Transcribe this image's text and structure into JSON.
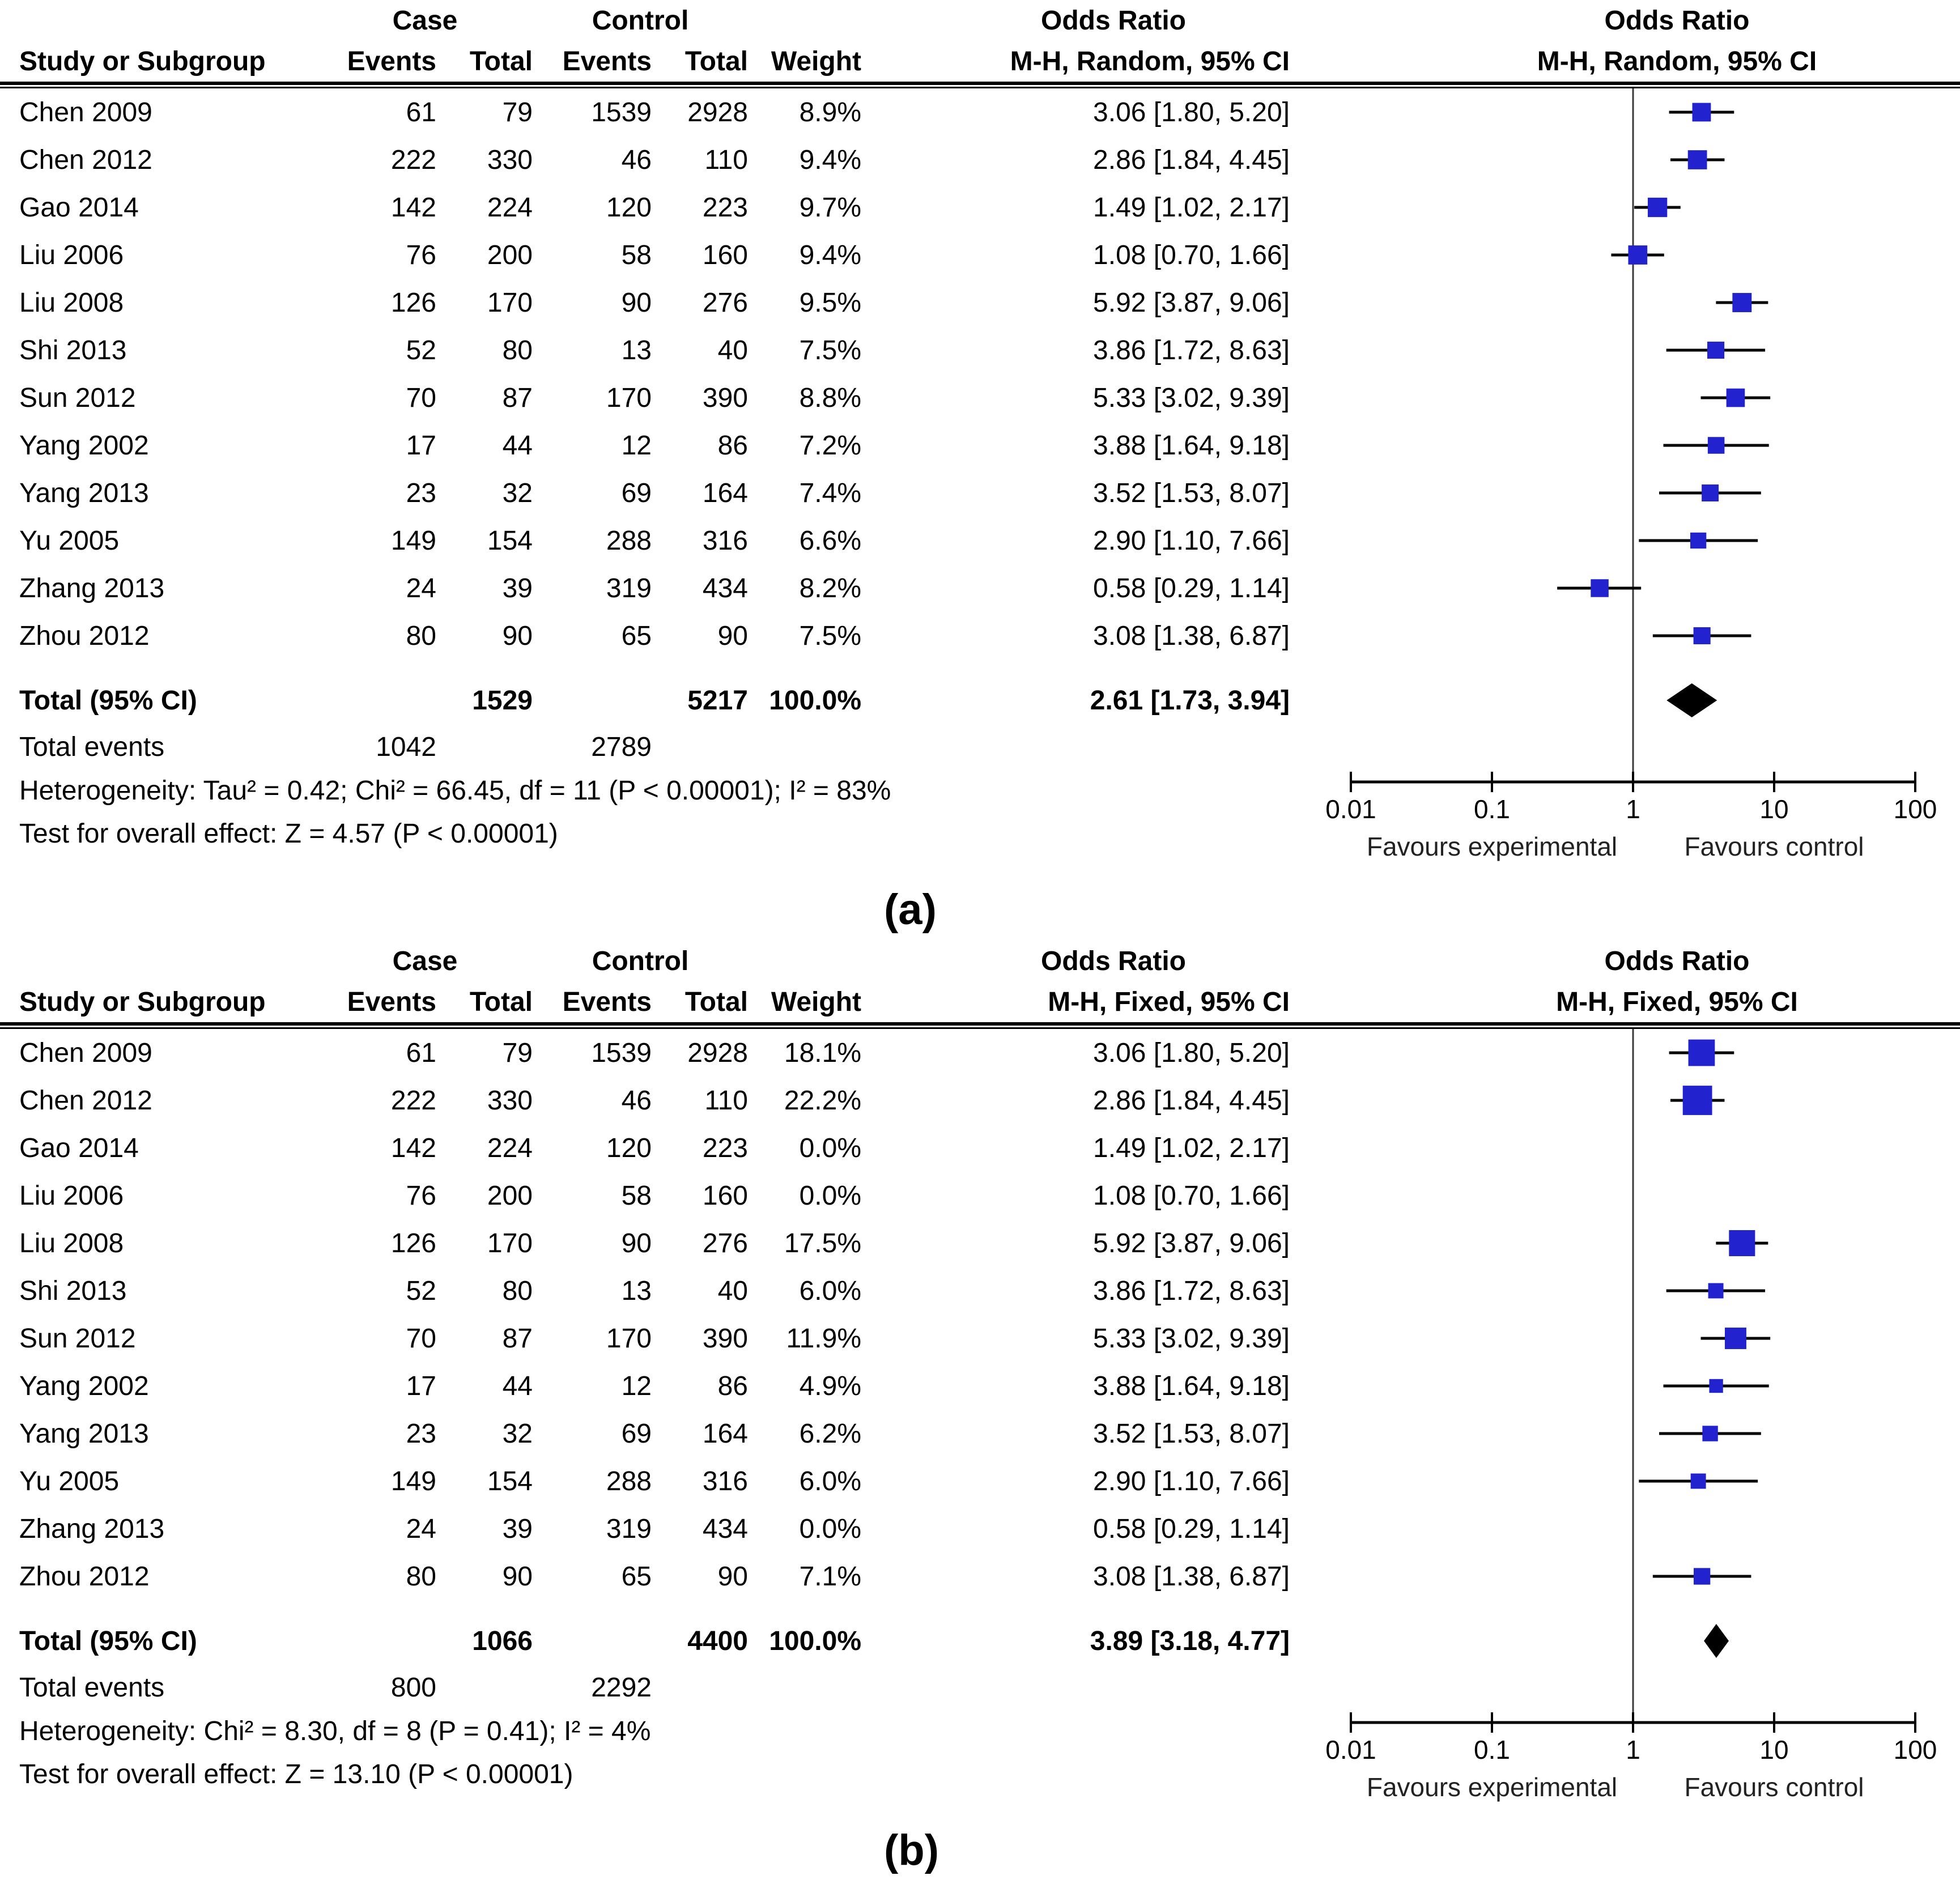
{
  "style": {
    "background": "#ffffff",
    "marker_color": "#2222cf",
    "ci_color": "#000000",
    "diamond_color": "#000000",
    "axis_color": "#000000",
    "vline_color": "#3a3a3a",
    "text_color": "#000000"
  },
  "chart_data": [
    {
      "type": "forest",
      "panel_label": "(a)",
      "effect_measure": "Odds Ratio",
      "model": "Random",
      "group_case": "Case",
      "group_control": "Control",
      "or_header": "Odds Ratio",
      "method": "M-H, Random, 95% CI",
      "columns": {
        "study": "Study or Subgroup",
        "events": "Events",
        "total": "Total",
        "weight": "Weight"
      },
      "studies": [
        {
          "study": "Chen 2009",
          "case_events": 61,
          "case_total": 79,
          "control_events": 1539,
          "control_total": 2928,
          "weight_text": "8.9%",
          "weight_pct": 8.9,
          "or_ci": "3.06 [1.80, 5.20]",
          "or": 3.06,
          "low": 1.8,
          "high": 5.2
        },
        {
          "study": "Chen 2012",
          "case_events": 222,
          "case_total": 330,
          "control_events": 46,
          "control_total": 110,
          "weight_text": "9.4%",
          "weight_pct": 9.4,
          "or_ci": "2.86 [1.84, 4.45]",
          "or": 2.86,
          "low": 1.84,
          "high": 4.45
        },
        {
          "study": "Gao 2014",
          "case_events": 142,
          "case_total": 224,
          "control_events": 120,
          "control_total": 223,
          "weight_text": "9.7%",
          "weight_pct": 9.7,
          "or_ci": "1.49 [1.02, 2.17]",
          "or": 1.49,
          "low": 1.02,
          "high": 2.17
        },
        {
          "study": "Liu 2006",
          "case_events": 76,
          "case_total": 200,
          "control_events": 58,
          "control_total": 160,
          "weight_text": "9.4%",
          "weight_pct": 9.4,
          "or_ci": "1.08 [0.70, 1.66]",
          "or": 1.08,
          "low": 0.7,
          "high": 1.66
        },
        {
          "study": "Liu 2008",
          "case_events": 126,
          "case_total": 170,
          "control_events": 90,
          "control_total": 276,
          "weight_text": "9.5%",
          "weight_pct": 9.5,
          "or_ci": "5.92 [3.87, 9.06]",
          "or": 5.92,
          "low": 3.87,
          "high": 9.06
        },
        {
          "study": "Shi 2013",
          "case_events": 52,
          "case_total": 80,
          "control_events": 13,
          "control_total": 40,
          "weight_text": "7.5%",
          "weight_pct": 7.5,
          "or_ci": "3.86 [1.72, 8.63]",
          "or": 3.86,
          "low": 1.72,
          "high": 8.63
        },
        {
          "study": "Sun 2012",
          "case_events": 70,
          "case_total": 87,
          "control_events": 170,
          "control_total": 390,
          "weight_text": "8.8%",
          "weight_pct": 8.8,
          "or_ci": "5.33 [3.02, 9.39]",
          "or": 5.33,
          "low": 3.02,
          "high": 9.39
        },
        {
          "study": "Yang 2002",
          "case_events": 17,
          "case_total": 44,
          "control_events": 12,
          "control_total": 86,
          "weight_text": "7.2%",
          "weight_pct": 7.2,
          "or_ci": "3.88 [1.64, 9.18]",
          "or": 3.88,
          "low": 1.64,
          "high": 9.18
        },
        {
          "study": "Yang 2013",
          "case_events": 23,
          "case_total": 32,
          "control_events": 69,
          "control_total": 164,
          "weight_text": "7.4%",
          "weight_pct": 7.4,
          "or_ci": "3.52 [1.53, 8.07]",
          "or": 3.52,
          "low": 1.53,
          "high": 8.07
        },
        {
          "study": "Yu 2005",
          "case_events": 149,
          "case_total": 154,
          "control_events": 288,
          "control_total": 316,
          "weight_text": "6.6%",
          "weight_pct": 6.6,
          "or_ci": "2.90 [1.10, 7.66]",
          "or": 2.9,
          "low": 1.1,
          "high": 7.66
        },
        {
          "study": "Zhang 2013",
          "case_events": 24,
          "case_total": 39,
          "control_events": 319,
          "control_total": 434,
          "weight_text": "8.2%",
          "weight_pct": 8.2,
          "or_ci": "0.58 [0.29, 1.14]",
          "or": 0.58,
          "low": 0.29,
          "high": 1.14
        },
        {
          "study": "Zhou 2012",
          "case_events": 80,
          "case_total": 90,
          "control_events": 65,
          "control_total": 90,
          "weight_text": "7.5%",
          "weight_pct": 7.5,
          "or_ci": "3.08 [1.38, 6.87]",
          "or": 3.08,
          "low": 1.38,
          "high": 6.87
        }
      ],
      "total": {
        "label": "Total (95% CI)",
        "case_total": 1529,
        "control_total": 5217,
        "weight_text": "100.0%",
        "or_ci": "2.61 [1.73, 3.94]",
        "or": 2.61,
        "low": 1.73,
        "high": 3.94
      },
      "total_events": {
        "label": "Total events",
        "case": 1042,
        "control": 2789
      },
      "heterogeneity": "Heterogeneity: Tau² = 0.42; Chi² = 66.45, df = 11 (P < 0.00001); I² = 83%",
      "overall_effect": "Test for overall effect: Z = 4.57 (P < 0.00001)",
      "x_axis": {
        "scale": "log",
        "min": 0.01,
        "max": 100,
        "ticks": [
          0.01,
          0.1,
          1,
          10,
          100
        ],
        "favours_left": "Favours experimental",
        "favours_right": "Favours control"
      }
    },
    {
      "type": "forest",
      "panel_label": "(b)",
      "effect_measure": "Odds Ratio",
      "model": "Fixed",
      "group_case": "Case",
      "group_control": "Control",
      "or_header": "Odds Ratio",
      "method": "M-H, Fixed, 95% CI",
      "columns": {
        "study": "Study or Subgroup",
        "events": "Events",
        "total": "Total",
        "weight": "Weight"
      },
      "studies": [
        {
          "study": "Chen 2009",
          "case_events": 61,
          "case_total": 79,
          "control_events": 1539,
          "control_total": 2928,
          "weight_text": "18.1%",
          "weight_pct": 18.1,
          "or_ci": "3.06 [1.80, 5.20]",
          "or": 3.06,
          "low": 1.8,
          "high": 5.2
        },
        {
          "study": "Chen 2012",
          "case_events": 222,
          "case_total": 330,
          "control_events": 46,
          "control_total": 110,
          "weight_text": "22.2%",
          "weight_pct": 22.2,
          "or_ci": "2.86 [1.84, 4.45]",
          "or": 2.86,
          "low": 1.84,
          "high": 4.45
        },
        {
          "study": "Gao 2014",
          "case_events": 142,
          "case_total": 224,
          "control_events": 120,
          "control_total": 223,
          "weight_text": "0.0%",
          "weight_pct": 0,
          "or_ci": "1.49 [1.02, 2.17]",
          "or": 1.49,
          "low": 1.02,
          "high": 2.17
        },
        {
          "study": "Liu 2006",
          "case_events": 76,
          "case_total": 200,
          "control_events": 58,
          "control_total": 160,
          "weight_text": "0.0%",
          "weight_pct": 0,
          "or_ci": "1.08 [0.70, 1.66]",
          "or": 1.08,
          "low": 0.7,
          "high": 1.66
        },
        {
          "study": "Liu 2008",
          "case_events": 126,
          "case_total": 170,
          "control_events": 90,
          "control_total": 276,
          "weight_text": "17.5%",
          "weight_pct": 17.5,
          "or_ci": "5.92 [3.87, 9.06]",
          "or": 5.92,
          "low": 3.87,
          "high": 9.06
        },
        {
          "study": "Shi 2013",
          "case_events": 52,
          "case_total": 80,
          "control_events": 13,
          "control_total": 40,
          "weight_text": "6.0%",
          "weight_pct": 6.0,
          "or_ci": "3.86 [1.72, 8.63]",
          "or": 3.86,
          "low": 1.72,
          "high": 8.63
        },
        {
          "study": "Sun 2012",
          "case_events": 70,
          "case_total": 87,
          "control_events": 170,
          "control_total": 390,
          "weight_text": "11.9%",
          "weight_pct": 11.9,
          "or_ci": "5.33 [3.02, 9.39]",
          "or": 5.33,
          "low": 3.02,
          "high": 9.39
        },
        {
          "study": "Yang 2002",
          "case_events": 17,
          "case_total": 44,
          "control_events": 12,
          "control_total": 86,
          "weight_text": "4.9%",
          "weight_pct": 4.9,
          "or_ci": "3.88 [1.64, 9.18]",
          "or": 3.88,
          "low": 1.64,
          "high": 9.18
        },
        {
          "study": "Yang 2013",
          "case_events": 23,
          "case_total": 32,
          "control_events": 69,
          "control_total": 164,
          "weight_text": "6.2%",
          "weight_pct": 6.2,
          "or_ci": "3.52 [1.53, 8.07]",
          "or": 3.52,
          "low": 1.53,
          "high": 8.07
        },
        {
          "study": "Yu 2005",
          "case_events": 149,
          "case_total": 154,
          "control_events": 288,
          "control_total": 316,
          "weight_text": "6.0%",
          "weight_pct": 6.0,
          "or_ci": "2.90 [1.10, 7.66]",
          "or": 2.9,
          "low": 1.1,
          "high": 7.66
        },
        {
          "study": "Zhang 2013",
          "case_events": 24,
          "case_total": 39,
          "control_events": 319,
          "control_total": 434,
          "weight_text": "0.0%",
          "weight_pct": 0,
          "or_ci": "0.58 [0.29, 1.14]",
          "or": 0.58,
          "low": 0.29,
          "high": 1.14
        },
        {
          "study": "Zhou 2012",
          "case_events": 80,
          "case_total": 90,
          "control_events": 65,
          "control_total": 90,
          "weight_text": "7.1%",
          "weight_pct": 7.1,
          "or_ci": "3.08 [1.38, 6.87]",
          "or": 3.08,
          "low": 1.38,
          "high": 6.87
        }
      ],
      "total": {
        "label": "Total (95% CI)",
        "case_total": 1066,
        "control_total": 4400,
        "weight_text": "100.0%",
        "or_ci": "3.89 [3.18, 4.77]",
        "or": 3.89,
        "low": 3.18,
        "high": 4.77
      },
      "total_events": {
        "label": "Total events",
        "case": 800,
        "control": 2292
      },
      "heterogeneity": "Heterogeneity: Chi² = 8.30, df = 8 (P = 0.41); I² = 4%",
      "overall_effect": "Test for overall effect: Z = 13.10 (P < 0.00001)",
      "x_axis": {
        "scale": "log",
        "min": 0.01,
        "max": 100,
        "ticks": [
          0.01,
          0.1,
          1,
          10,
          100
        ],
        "favours_left": "Favours experimental",
        "favours_right": "Favours control"
      }
    }
  ]
}
